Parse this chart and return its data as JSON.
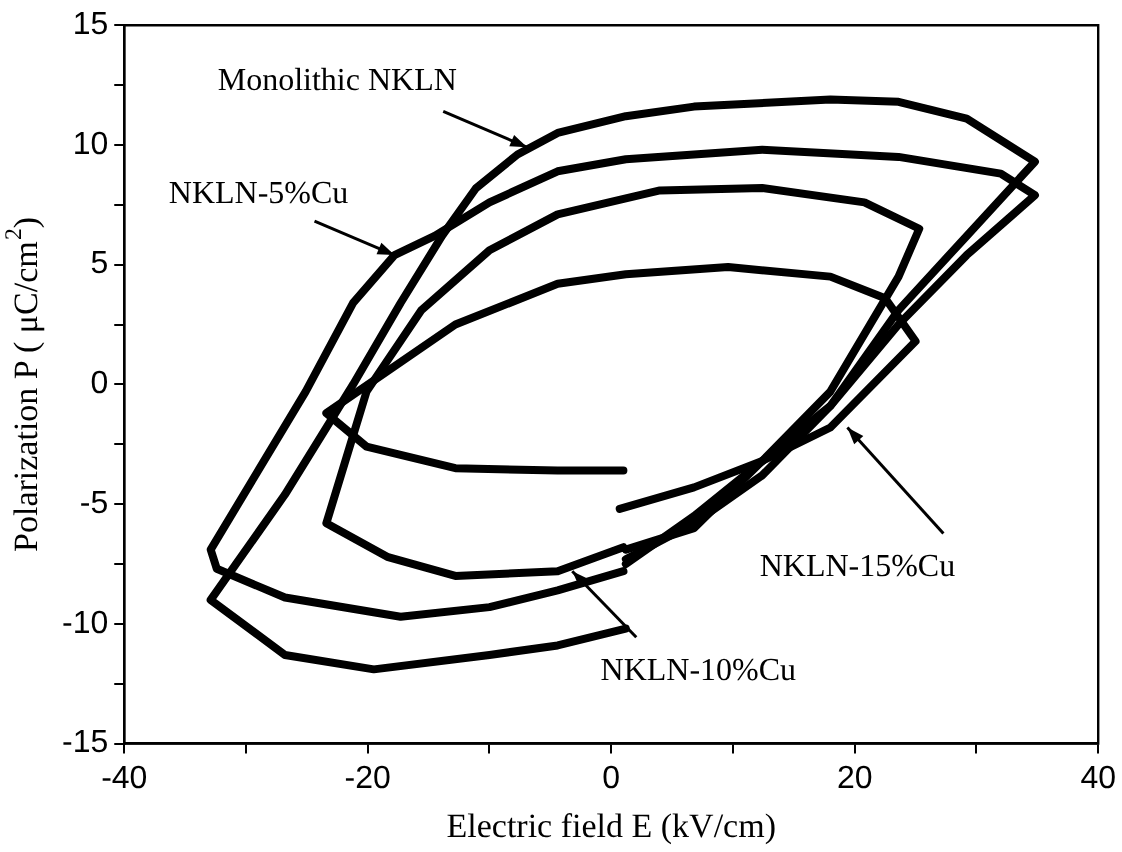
{
  "chart_data": {
    "type": "line",
    "xlabel": "Electric field E (kV/cm)",
    "ylabel": "Polarization P ( μC/cm$^{2}$)",
    "xlim": [
      -40,
      40
    ],
    "ylim": [
      -15,
      15
    ],
    "xticks": [
      -40,
      {
        "value": -30,
        "label": null
      },
      -20,
      {
        "value": -10,
        "label": null
      },
      0,
      {
        "value": 10,
        "label": null
      },
      20,
      {
        "value": 30,
        "label": null
      },
      40
    ],
    "yticks": [
      -15,
      {
        "value": -12.5,
        "label": null
      },
      -10,
      {
        "value": -7.5,
        "label": null
      },
      -5,
      {
        "value": -2.5,
        "label": null
      },
      0,
      {
        "value": 2.5,
        "label": null
      },
      5,
      {
        "value": 7.5,
        "label": null
      },
      10,
      {
        "value": 12.5,
        "label": null
      },
      15
    ],
    "grid": false,
    "legend": false,
    "marker": "none",
    "line_style": "solid",
    "series": [
      {
        "color": "#000000",
        "x": [
          1.2,
          6.8,
          12.4,
          18,
          23.6,
          29.2,
          34.8,
          29.2,
          23.6,
          18,
          6.8,
          1.2,
          -4.4,
          -7.7,
          -11.1,
          -13.9,
          -17.3,
          -21.2,
          -26.8,
          -32.9,
          -26.8,
          -19.5,
          -10,
          -4.4,
          1.2
        ],
        "values": [
          -7.5,
          -5.5,
          -3.2,
          -0.9,
          3.1,
          6.2,
          9.3,
          11.1,
          11.8,
          11.9,
          11.6,
          11.2,
          10.5,
          9.6,
          8.2,
          6.2,
          3.4,
          0,
          -4.6,
          -9,
          -11.3,
          -11.9,
          -11.3,
          -10.9,
          -10.2
        ]
      },
      {
        "color": "#000000",
        "x": [
          1.2,
          6.8,
          12.4,
          18,
          23.6,
          29.2,
          34.8,
          32,
          23.6,
          12.4,
          1.2,
          -4.4,
          -10,
          -14.5,
          -17.8,
          -21.2,
          -25.1,
          -32.9,
          -32.4,
          -26.8,
          -17.3,
          -10,
          -4.4,
          1
        ],
        "values": [
          -7.3,
          -5.8,
          -3.8,
          -0.9,
          2.5,
          5.4,
          7.9,
          8.8,
          9.5,
          9.8,
          9.4,
          8.9,
          7.6,
          6.2,
          5.4,
          3.4,
          -0.3,
          -6.9,
          -7.7,
          -8.9,
          -9.7,
          -9.3,
          -8.6,
          -7.8
        ]
      },
      {
        "color": "#000000",
        "x": [
          1.2,
          6.8,
          12.4,
          18,
          23.6,
          25.3,
          20.8,
          12.4,
          4,
          -4.4,
          -10,
          -15.6,
          -20.1,
          -23.4,
          -18.4,
          -12.8,
          -4.4,
          1
        ],
        "values": [
          -6.9,
          -6,
          -3.2,
          -0.3,
          4.5,
          6.5,
          7.6,
          8.2,
          8.1,
          7.1,
          5.6,
          3.1,
          -0.3,
          -5.8,
          -7.2,
          -8,
          -7.8,
          -6.8
        ]
      },
      {
        "color": "#000000",
        "x": [
          0.7,
          6.8,
          12.4,
          18,
          25,
          22.5,
          18,
          9.6,
          1.2,
          -4.4,
          -12.8,
          -23.4,
          -20.1,
          -12.8,
          -4.4,
          1
        ],
        "values": [
          -5.2,
          -4.3,
          -3.2,
          -1.8,
          1.8,
          3.6,
          4.5,
          4.9,
          4.6,
          4.2,
          2.5,
          -1.2,
          -2.6,
          -3.5,
          -3.6,
          -3.6
        ]
      }
    ],
    "annotations": [
      {
        "text": "Monolithic NKLN",
        "x": -6.9,
        "y": 9.9
      },
      {
        "text": "NKLN-5%Cu",
        "x": -17.8,
        "y": 5.4
      },
      {
        "text": "NKLN-15%Cu",
        "x": 19.4,
        "y": -1.8
      },
      {
        "text": "NKLN-10%Cu",
        "x": -3.2,
        "y": -7.8
      }
    ]
  }
}
